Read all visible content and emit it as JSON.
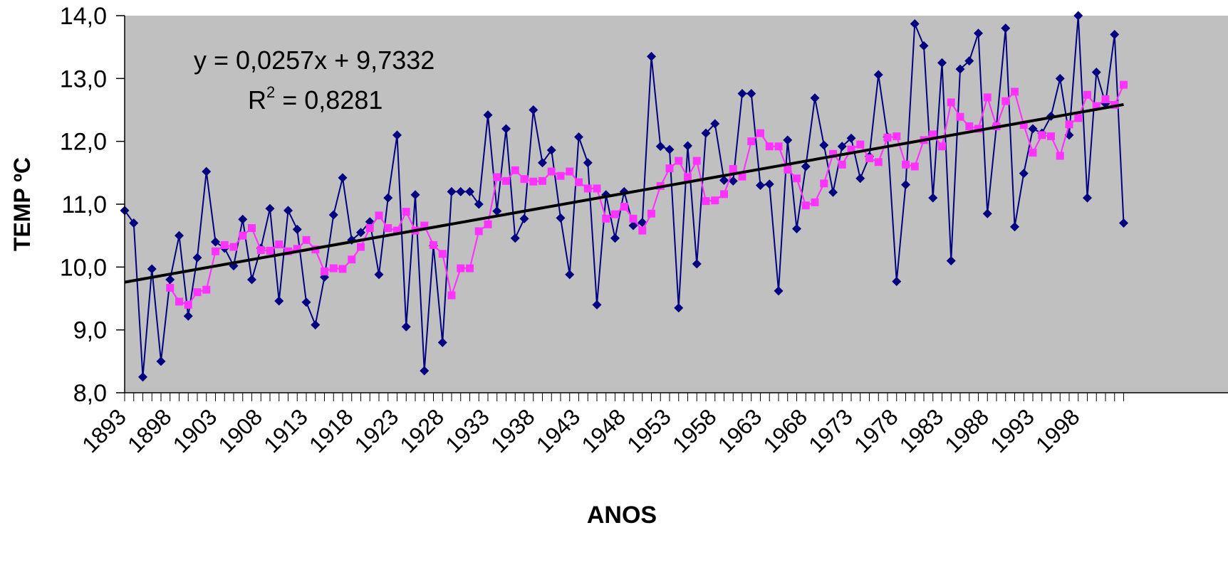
{
  "chart_data": {
    "type": "line",
    "title": "",
    "xlabel": "ANOS",
    "ylabel": "TEMP ºC",
    "ylim": [
      8.0,
      14.0
    ],
    "xlim": [
      1893,
      2003
    ],
    "y_ticks": [
      "8,0",
      "9,0",
      "10,0",
      "11,0",
      "12,0",
      "13,0",
      "14,0"
    ],
    "x_tick_labels": [
      "1893",
      "1898",
      "1903",
      "1908",
      "1913",
      "1918",
      "1923",
      "1928",
      "1933",
      "1938",
      "1943",
      "1948",
      "1953",
      "1958",
      "1963",
      "1968",
      "1973",
      "1978",
      "1983",
      "1988",
      "1993",
      "1998"
    ],
    "grid": false,
    "legend": "none",
    "plot_background": "#c0c0c0",
    "trendline": {
      "equation": "y = 0,0257x + 9,7332",
      "r2_label": "R",
      "r2_exp": "2",
      "r2_value": " = 0,8281",
      "slope": 0.0257,
      "intercept": 9.7332,
      "color": "#000000"
    },
    "series": [
      {
        "color": "#000080",
        "marker": "diamond",
        "x": [
          1893,
          1894,
          1895,
          1896,
          1897,
          1898,
          1899,
          1900,
          1901,
          1902,
          1903,
          1904,
          1905,
          1906,
          1907,
          1908,
          1909,
          1910,
          1911,
          1912,
          1913,
          1914,
          1915,
          1916,
          1917,
          1918,
          1919,
          1920,
          1921,
          1922,
          1923,
          1924,
          1925,
          1926,
          1927,
          1928,
          1929,
          1930,
          1931,
          1932,
          1933,
          1934,
          1935,
          1936,
          1937,
          1938,
          1939,
          1940,
          1941,
          1942,
          1943,
          1944,
          1945,
          1946,
          1947,
          1948,
          1949,
          1950,
          1951,
          1952,
          1953,
          1954,
          1955,
          1956,
          1957,
          1958,
          1959,
          1960,
          1961,
          1962,
          1963,
          1964,
          1965,
          1966,
          1967,
          1968,
          1969,
          1970,
          1971,
          1972,
          1973,
          1974,
          1975,
          1976,
          1977,
          1978,
          1979,
          1980,
          1981,
          1982,
          1983,
          1984,
          1985,
          1986,
          1987,
          1988,
          1989,
          1990,
          1991,
          1992,
          1993,
          1994,
          1995,
          1996,
          1997,
          1998,
          1999,
          2000,
          2001,
          2002,
          2003
        ],
        "values": [
          10.9,
          10.7,
          8.25,
          9.97,
          8.5,
          9.8,
          10.5,
          9.22,
          10.15,
          11.52,
          10.4,
          10.3,
          10.02,
          10.76,
          9.8,
          10.3,
          10.93,
          9.46,
          10.9,
          10.6,
          9.44,
          9.08,
          9.84,
          10.83,
          11.42,
          10.43,
          10.55,
          10.72,
          9.88,
          11.1,
          12.1,
          9.05,
          11.15,
          8.35,
          10.34,
          8.8,
          11.2,
          11.2,
          11.2,
          11.0,
          12.42,
          10.89,
          12.2,
          10.46,
          10.77,
          12.5,
          11.66,
          11.86,
          10.78,
          9.88,
          12.07,
          11.66,
          9.4,
          11.15,
          10.46,
          11.2,
          10.66,
          10.71,
          13.35,
          11.92,
          11.87,
          9.35,
          11.93,
          10.05,
          12.13,
          12.28,
          11.38,
          11.37,
          12.76,
          12.76,
          11.3,
          11.32,
          9.62,
          12.02,
          10.61,
          11.6,
          12.69,
          11.94,
          11.19,
          11.92,
          12.05,
          11.41,
          11.76,
          13.06,
          12.07,
          9.77,
          11.31,
          13.87,
          13.52,
          11.1,
          13.25,
          10.1,
          13.15,
          13.28,
          13.72,
          10.85,
          12.25,
          13.8,
          10.64,
          11.49,
          12.2,
          12.13,
          12.4,
          13.0,
          12.1,
          14.0,
          11.1,
          13.1,
          12.6,
          13.7,
          10.7
        ]
      },
      {
        "color": "#ff33ff",
        "marker": "square",
        "x": [
          1898,
          1899,
          1900,
          1901,
          1902,
          1903,
          1904,
          1905,
          1906,
          1907,
          1908,
          1909,
          1910,
          1911,
          1912,
          1913,
          1914,
          1915,
          1916,
          1917,
          1918,
          1919,
          1920,
          1921,
          1922,
          1923,
          1924,
          1925,
          1926,
          1927,
          1928,
          1929,
          1930,
          1931,
          1932,
          1933,
          1934,
          1935,
          1936,
          1937,
          1938,
          1939,
          1940,
          1941,
          1942,
          1943,
          1944,
          1945,
          1946,
          1947,
          1948,
          1949,
          1950,
          1951,
          1952,
          1953,
          1954,
          1955,
          1956,
          1957,
          1958,
          1959,
          1960,
          1961,
          1962,
          1963,
          1964,
          1965,
          1966,
          1967,
          1968,
          1969,
          1970,
          1971,
          1972,
          1973,
          1974,
          1975,
          1976,
          1977,
          1978,
          1979,
          1980,
          1981,
          1982,
          1983,
          1984,
          1985,
          1986,
          1987,
          1988,
          1989,
          1990,
          1991,
          1992,
          1993,
          1994,
          1995,
          1996,
          1997,
          1998,
          1999,
          2000,
          2001,
          2002,
          2003
        ],
        "values": [
          9.67,
          9.45,
          9.4,
          9.6,
          9.64,
          10.25,
          10.35,
          10.32,
          10.5,
          10.62,
          10.27,
          10.26,
          10.36,
          10.25,
          10.29,
          10.43,
          10.28,
          9.93,
          9.98,
          9.97,
          10.12,
          10.32,
          10.62,
          10.82,
          10.62,
          10.58,
          10.88,
          10.58,
          10.66,
          10.35,
          10.21,
          9.55,
          9.98,
          9.98,
          10.57,
          10.68,
          11.43,
          11.37,
          11.54,
          11.4,
          11.36,
          11.37,
          11.52,
          11.45,
          11.52,
          11.35,
          11.25,
          11.25,
          10.77,
          10.84,
          10.96,
          10.77,
          10.58,
          10.85,
          11.29,
          11.57,
          11.69,
          11.43,
          11.69,
          11.05,
          11.06,
          11.16,
          11.56,
          11.44,
          12.0,
          12.13,
          11.92,
          11.92,
          11.55,
          11.41,
          10.98,
          11.03,
          11.33,
          11.8,
          11.63,
          11.87,
          11.95,
          11.73,
          11.67,
          12.06,
          12.08,
          11.63,
          11.6,
          12.02,
          12.11,
          11.92,
          12.62,
          12.39,
          12.24,
          12.2,
          12.7,
          12.24,
          12.64,
          12.79,
          12.26,
          11.82,
          12.1,
          12.08,
          11.77,
          12.27,
          12.37,
          12.74,
          12.56,
          12.67,
          12.58,
          12.9
        ]
      }
    ]
  }
}
